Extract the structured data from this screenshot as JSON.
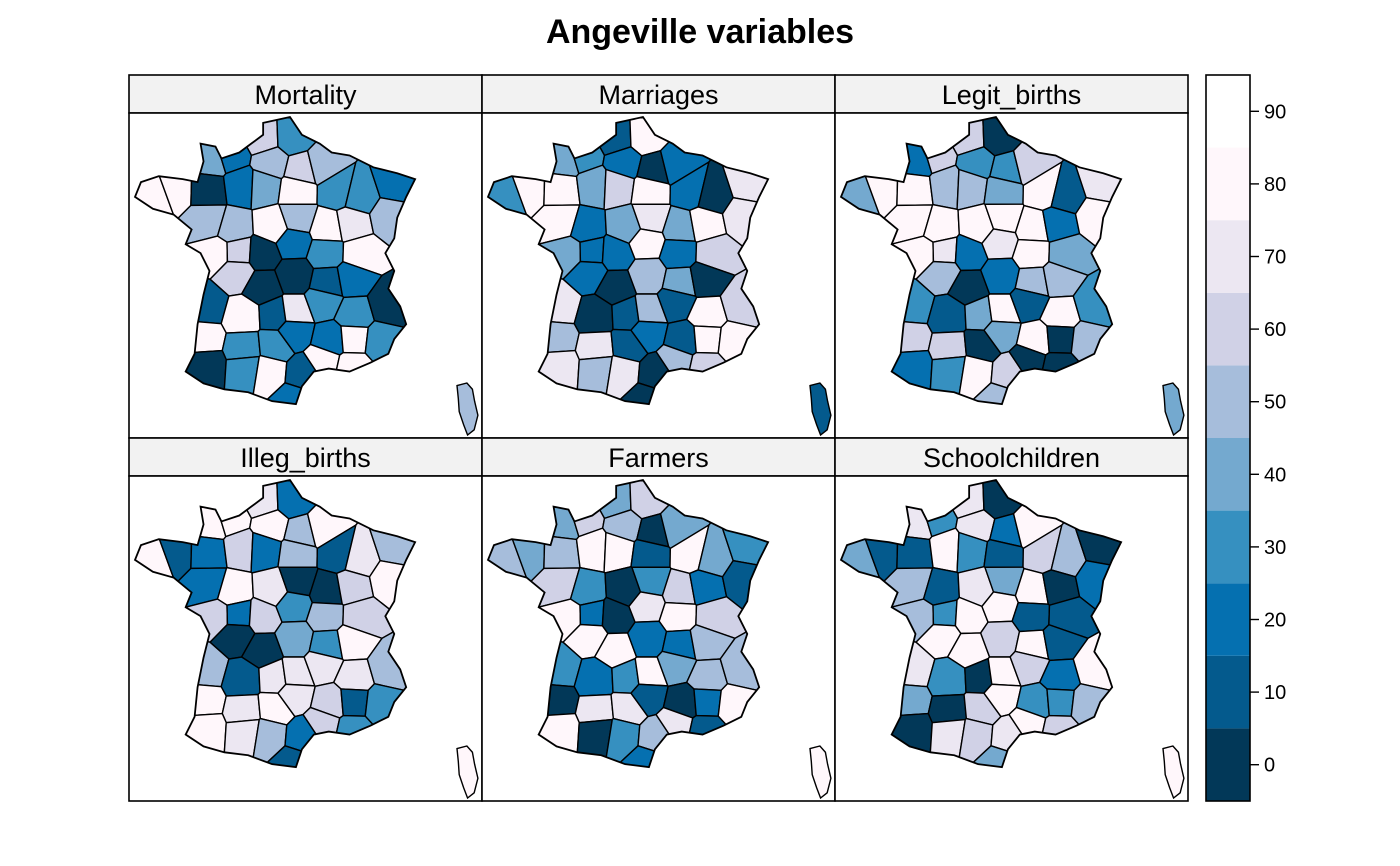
{
  "title": "Angeville variables",
  "panels": [
    {
      "label": "Mortality",
      "row": 0,
      "col": 0,
      "seed": 11
    },
    {
      "label": "Marriages",
      "row": 0,
      "col": 1,
      "seed": 23
    },
    {
      "label": "Legit_births",
      "row": 0,
      "col": 2,
      "seed": 37
    },
    {
      "label": "Illeg_births",
      "row": 1,
      "col": 0,
      "seed": 41
    },
    {
      "label": "Farmers",
      "row": 1,
      "col": 1,
      "seed": 59
    },
    {
      "label": "Schoolchildren",
      "row": 1,
      "col": 2,
      "seed": 67
    }
  ],
  "colorbar": {
    "breaks": [
      -5,
      5,
      15,
      25,
      35,
      45,
      55,
      65,
      75,
      85,
      95
    ],
    "ticks": [
      "0",
      "10",
      "20",
      "30",
      "40",
      "50",
      "60",
      "70",
      "80",
      "90"
    ],
    "colors": [
      "#023858",
      "#045a8d",
      "#0570b0",
      "#3690c0",
      "#74a9cf",
      "#a6bddb",
      "#d0d1e6",
      "#ece7f2",
      "#fff7fb"
    ]
  },
  "colors": {
    "strip_bg": "#f2f2f2",
    "border": "#000000"
  }
}
